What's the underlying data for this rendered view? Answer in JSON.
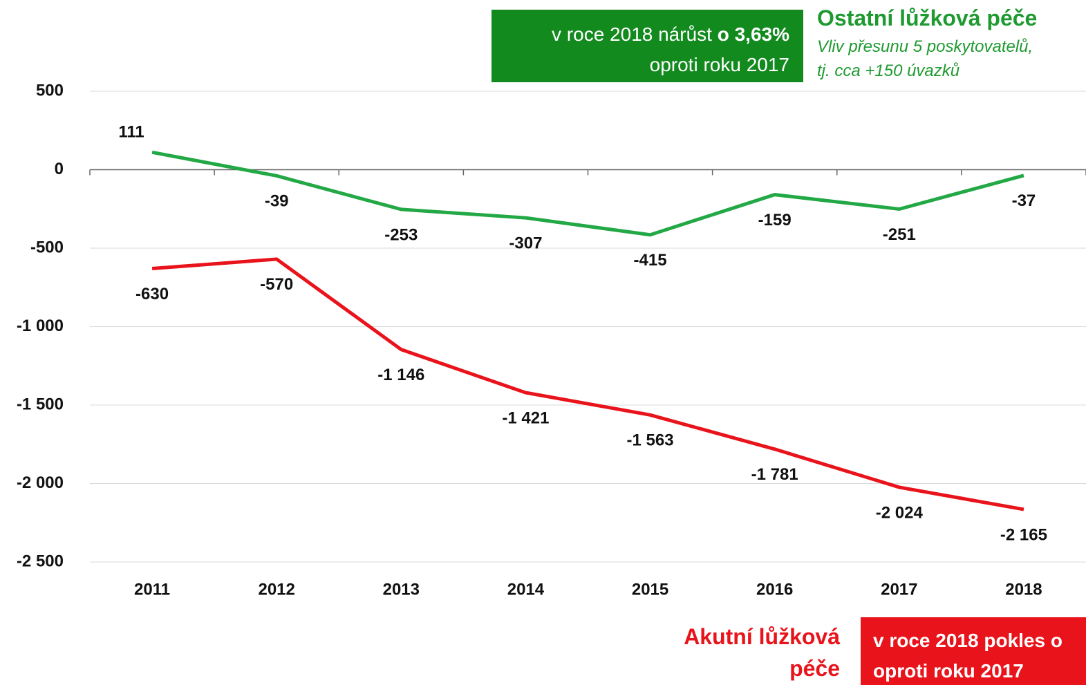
{
  "chart_data": {
    "type": "line",
    "categories": [
      "2011",
      "2012",
      "2013",
      "2014",
      "2015",
      "2016",
      "2017",
      "2018"
    ],
    "series": [
      {
        "name": "Ostatní lůžková péče",
        "color": "#22a845",
        "values": [
          111,
          -39,
          -253,
          -307,
          -415,
          -159,
          -251,
          -37
        ]
      },
      {
        "name": "Akutní lůžková péče",
        "color": "#e8131b",
        "values": [
          -630,
          -570,
          -1146,
          -1421,
          -1563,
          -1781,
          -2024,
          -2165
        ],
        "value_labels": [
          "-630",
          "-570",
          "-1 146",
          "-1 421",
          "-1 563",
          "-1 781",
          "-2 024",
          "-2 165"
        ]
      }
    ],
    "ylim": [
      -2500,
      500
    ],
    "yticks": [
      500,
      0,
      {
        "value": -500,
        "label": "-500"
      },
      {
        "value": -1000,
        "label": "-1 000"
      },
      {
        "value": -1500,
        "label": "-1 500"
      },
      {
        "value": -2000,
        "label": "-2 000"
      },
      {
        "value": -2500,
        "label": "-2 500"
      }
    ],
    "grid": true,
    "annotations": {
      "green_box": [
        "v roce 2018 nárůst ",
        "o 3,63%",
        "oproti roku 2017"
      ],
      "green_note": [
        "Vliv přesunu 5 poskytovatelů,",
        "tj. cca +150 úvazků"
      ],
      "red_box": [
        "v roce 2018 pokles o",
        "oproti roku 2017"
      ]
    }
  }
}
